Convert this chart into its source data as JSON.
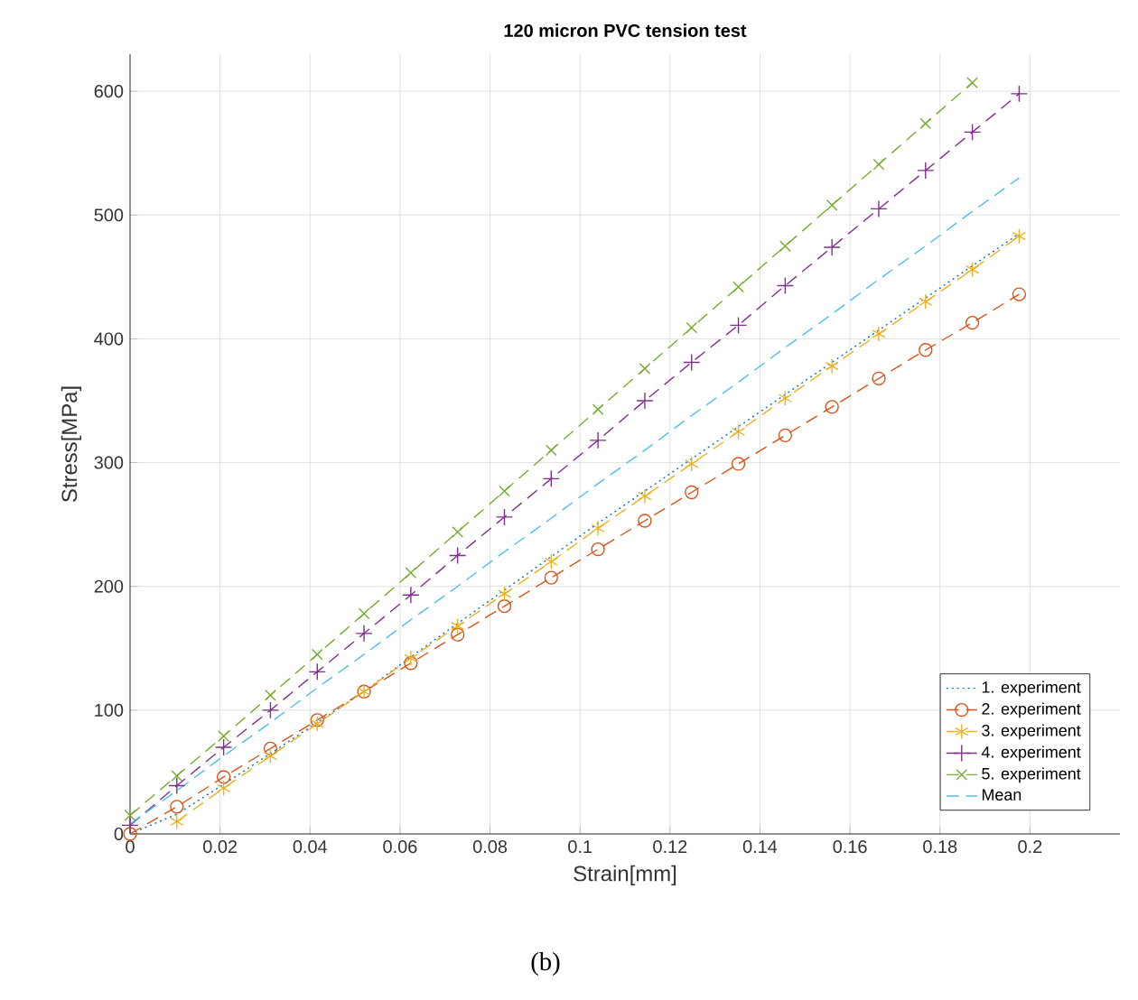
{
  "chart_data": {
    "type": "line",
    "title": "120 micron PVC tension test",
    "xlabel": "Strain[mm]",
    "ylabel": "Stress[MPa]",
    "annotations": [
      "(b)"
    ],
    "x": [
      0,
      0.0104,
      0.0208,
      0.0312,
      0.0416,
      0.052,
      0.0624,
      0.0728,
      0.0832,
      0.0936,
      0.104,
      0.1144,
      0.1248,
      0.1352,
      0.1456,
      0.156,
      0.1664,
      0.1768,
      0.1872,
      0.1976
    ],
    "series": [
      {
        "name": "1. experiment",
        "color": "#0072bd",
        "line_style": "dotted",
        "marker": "none",
        "values": [
          0,
          16,
          40,
          65,
          90,
          115,
          143,
          170,
          197,
          224,
          251,
          277,
          303,
          329,
          355,
          381,
          407,
          433,
          459,
          485
        ]
      },
      {
        "name": "2. experiment",
        "color": "#d95319",
        "line_style": "dashed",
        "marker": "circle",
        "values": [
          0,
          22,
          46,
          69,
          92,
          115,
          138,
          161,
          184,
          207,
          230,
          253,
          276,
          299,
          322,
          345,
          368,
          391,
          413,
          436
        ]
      },
      {
        "name": "3. experiment",
        "color": "#edb120",
        "line_style": "dashed",
        "marker": "cross",
        "values": [
          null,
          10,
          37,
          63,
          89,
          115,
          142,
          168,
          194,
          220,
          247,
          273,
          299,
          325,
          352,
          378,
          404,
          430,
          456,
          483
        ]
      },
      {
        "name": "4. experiment",
        "color": "#7e2f8e",
        "line_style": "dashed",
        "marker": "plus",
        "values": [
          7,
          39,
          70,
          100,
          131,
          162,
          193,
          225,
          256,
          287,
          318,
          350,
          381,
          411,
          443,
          474,
          505,
          536,
          567,
          598
        ]
      },
      {
        "name": "5. experiment",
        "color": "#77ac30",
        "line_style": "dashed",
        "marker": "x",
        "values": [
          15,
          47,
          79,
          112,
          145,
          178,
          211,
          244,
          277,
          310,
          343,
          376,
          409,
          442,
          475,
          508,
          541,
          574,
          607,
          null
        ]
      },
      {
        "name": "Mean",
        "color": "#4dbeee",
        "line_style": "dashed",
        "marker": "none",
        "values": [
          8,
          35,
          63,
          90,
          118,
          145,
          173,
          200,
          228,
          255,
          283,
          310,
          338,
          365,
          393,
          420,
          448,
          475,
          503,
          530
        ]
      }
    ],
    "xlim": [
      0,
      0.22
    ],
    "ylim": [
      0,
      630
    ],
    "xticks": [
      0,
      0.02,
      0.04,
      0.06,
      0.08,
      0.1,
      0.12,
      0.14,
      0.16,
      0.18,
      0.2
    ],
    "yticks": [
      0,
      100,
      200,
      300,
      400,
      500,
      600
    ],
    "grid": true,
    "legend": "bottom right"
  }
}
